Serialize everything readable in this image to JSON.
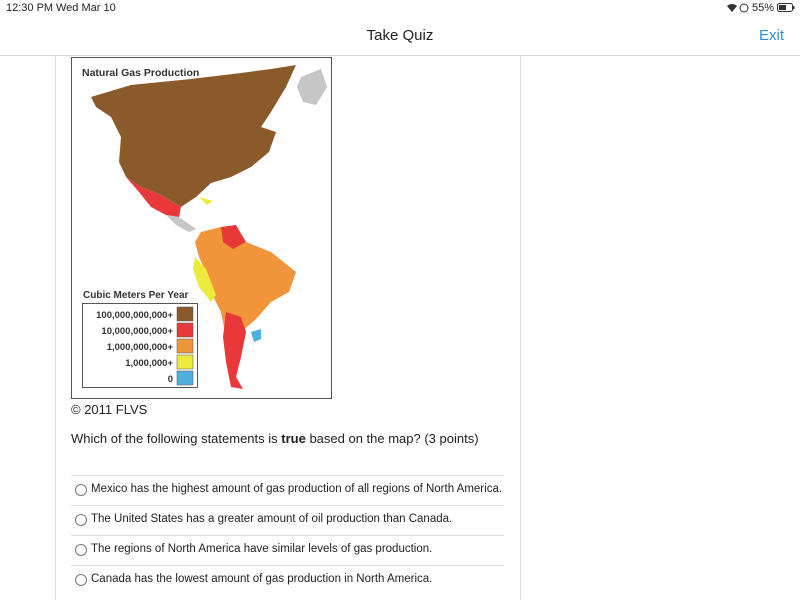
{
  "status_bar": {
    "time": "12:30 PM",
    "date": "Wed Mar 10",
    "battery": "55%"
  },
  "header": {
    "title": "Take Quiz",
    "exit": "Exit"
  },
  "map": {
    "title": "Natural Gas Production",
    "legend_title": "Cubic Meters Per Year",
    "legend": [
      {
        "label": "100,000,000,000+",
        "color": "#8b5a2b"
      },
      {
        "label": "10,000,000,000+",
        "color": "#e8383a"
      },
      {
        "label": "1,000,000,000+",
        "color": "#f0953a"
      },
      {
        "label": "1,000,000+",
        "color": "#ecea3c"
      },
      {
        "label": "0",
        "color": "#4fb0e0"
      }
    ]
  },
  "copyright": "© 2011 FLVS",
  "question": {
    "before": "Which of the following statements is ",
    "bold": "true",
    "after": " based on the map? (3 points)"
  },
  "options": [
    "Mexico has the highest amount of gas production of all regions of North America.",
    "The United States has a greater amount of oil production than Canada.",
    "The regions of North America have similar levels of gas production.",
    "Canada has the lowest amount of gas production in North America."
  ]
}
